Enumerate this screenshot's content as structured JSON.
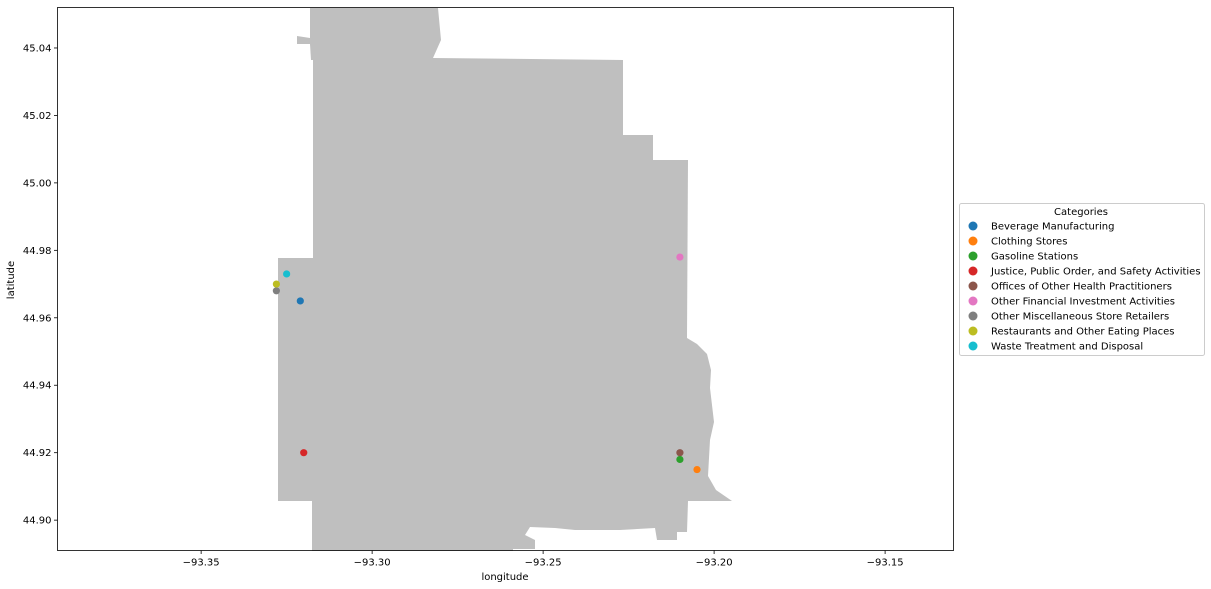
{
  "chart_data": {
    "type": "scatter",
    "xlabel": "longitude",
    "ylabel": "latitude",
    "xlim": [
      -93.392,
      -93.13
    ],
    "ylim": [
      44.891,
      45.052
    ],
    "xticks": [
      -93.35,
      -93.3,
      -93.25,
      -93.2,
      -93.15
    ],
    "xtick_labels": [
      "−93.35",
      "−93.30",
      "−93.25",
      "−93.20",
      "−93.15"
    ],
    "yticks": [
      44.9,
      44.92,
      44.94,
      44.96,
      44.98,
      45.0,
      45.02,
      45.04
    ],
    "ytick_labels": [
      "44.90",
      "44.92",
      "44.94",
      "44.96",
      "44.98",
      "45.00",
      "45.02",
      "45.04"
    ],
    "grid": false,
    "legend_title": "Categories",
    "legend_position": "outside-right",
    "background_region_color": "#bfbfbf",
    "series": [
      {
        "name": "Beverage Manufacturing",
        "color": "#1f77b4",
        "points": [
          {
            "x": -93.321,
            "y": 44.965
          }
        ]
      },
      {
        "name": "Clothing Stores",
        "color": "#ff7f0e",
        "points": [
          {
            "x": -93.205,
            "y": 44.915
          }
        ]
      },
      {
        "name": "Gasoline Stations",
        "color": "#2ca02c",
        "points": [
          {
            "x": -93.21,
            "y": 44.918
          }
        ]
      },
      {
        "name": "Justice, Public Order, and Safety Activities",
        "color": "#d62728",
        "points": [
          {
            "x": -93.32,
            "y": 44.92
          }
        ]
      },
      {
        "name": "Offices of Other Health Practitioners",
        "color": "#8c564b",
        "points": [
          {
            "x": -93.21,
            "y": 44.92
          }
        ]
      },
      {
        "name": "Other Financial Investment Activities",
        "color": "#e377c2",
        "points": [
          {
            "x": -93.21,
            "y": 44.978
          }
        ]
      },
      {
        "name": "Other Miscellaneous Store Retailers",
        "color": "#7f7f7f",
        "points": [
          {
            "x": -93.328,
            "y": 44.968
          }
        ]
      },
      {
        "name": "Restaurants and Other Eating Places",
        "color": "#bcbd22",
        "points": [
          {
            "x": -93.328,
            "y": 44.97
          }
        ]
      },
      {
        "name": "Waste Treatment and Disposal",
        "color": "#17becf",
        "points": [
          {
            "x": -93.325,
            "y": 44.973
          }
        ]
      }
    ]
  }
}
